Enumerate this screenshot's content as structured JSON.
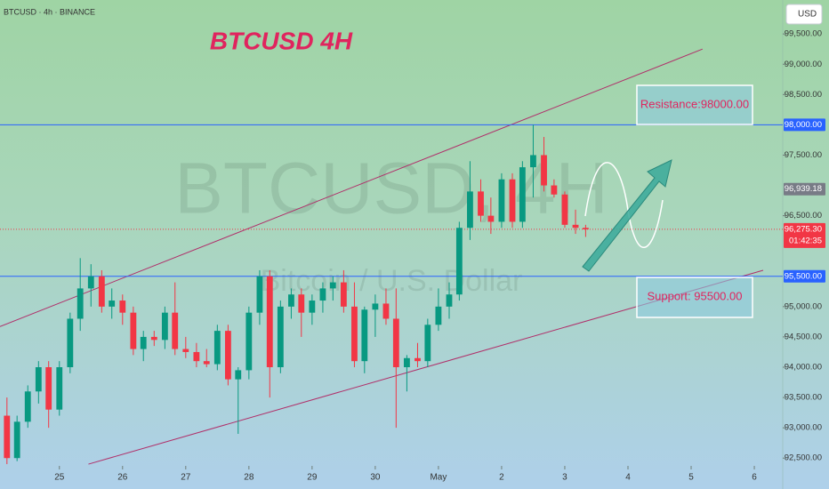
{
  "header": "BTCUSD · 4h · BINANCE",
  "currency": "USD",
  "chart_data": {
    "type": "candlestick",
    "title": "BTCUSD 4H",
    "watermark": "BTCUSD, 4H",
    "watermark_subtitle": "Bitcoin / U.S. Dollar",
    "up_color": "#089981",
    "down_color": "#f23645",
    "xlim": [
      24.06,
      36.45
    ],
    "xticks": [
      25,
      26,
      27,
      28,
      29,
      30,
      {
        "value": 31,
        "label": "May"
      },
      {
        "value": 32,
        "label": "2"
      },
      {
        "value": 33,
        "label": "3"
      },
      {
        "value": 34,
        "label": "4"
      },
      {
        "value": 35,
        "label": "5"
      },
      {
        "value": 36,
        "label": "6"
      }
    ],
    "ylim": [
      92430,
      100060
    ],
    "yticks": [
      {
        "value": 92500,
        "label": "92,500.00"
      },
      {
        "value": 93000,
        "label": "93,000.00"
      },
      {
        "value": 93500,
        "label": "93,500.00"
      },
      {
        "value": 94000,
        "label": "94,000.00"
      },
      {
        "value": 94500,
        "label": "94,500.00"
      },
      {
        "value": 95000,
        "label": "95,000.00"
      },
      {
        "value": 96500,
        "label": "96,500.00"
      },
      {
        "value": 97500,
        "label": "97,500.00"
      },
      {
        "value": 98500,
        "label": "98,500.00"
      },
      {
        "value": 99000,
        "label": "99,000.00"
      },
      {
        "value": 99500,
        "label": "99,500.00"
      }
    ],
    "x": [
      24.17,
      24.33,
      24.5,
      24.67,
      24.83,
      25,
      25.17,
      25.33,
      25.5,
      25.67,
      25.83,
      26,
      26.17,
      26.33,
      26.5,
      26.67,
      26.83,
      27,
      27.17,
      27.33,
      27.5,
      27.67,
      27.83,
      28,
      28.17,
      28.33,
      28.5,
      28.67,
      28.83,
      29,
      29.17,
      29.33,
      29.5,
      29.67,
      29.83,
      30,
      30.17,
      30.33,
      30.5,
      30.67,
      30.83,
      31,
      31.17,
      31.33,
      31.5,
      31.67,
      31.83,
      32,
      32.17,
      32.33,
      32.5,
      32.67,
      32.83,
      33,
      33.17,
      33.33
    ],
    "open": [
      93200,
      92500,
      93100,
      93600,
      94000,
      93300,
      94000,
      94800,
      95300,
      95500,
      95000,
      95100,
      94900,
      94300,
      94500,
      94450,
      94900,
      94300,
      94250,
      94100,
      94050,
      94600,
      93800,
      93950,
      94900,
      95500,
      94000,
      95000,
      95200,
      94900,
      95100,
      95300,
      95400,
      95000,
      94100,
      94950,
      95050,
      94800,
      94000,
      94150,
      94100,
      94700,
      95000,
      95200,
      96300,
      96900,
      96500,
      96400,
      97100,
      96400,
      97300,
      97500,
      97000,
      96850,
      96350,
      96300
    ],
    "high": [
      93500,
      93200,
      93700,
      94100,
      94100,
      94100,
      94900,
      95800,
      95700,
      95600,
      95300,
      95200,
      95000,
      94600,
      94600,
      95000,
      95400,
      94500,
      94400,
      94300,
      94700,
      94700,
      94000,
      95000,
      95600,
      95600,
      95100,
      95300,
      95300,
      95200,
      95400,
      95500,
      95600,
      95400,
      95000,
      95200,
      95300,
      95300,
      94200,
      94400,
      94800,
      95300,
      95400,
      96400,
      97400,
      97100,
      96800,
      97200,
      97200,
      97400,
      98000,
      97800,
      97100,
      96900,
      96600,
      96350
    ],
    "low": [
      92400,
      92450,
      93000,
      93400,
      93000,
      93200,
      93900,
      94600,
      95000,
      94900,
      94800,
      94700,
      94200,
      94100,
      94350,
      94300,
      94200,
      94150,
      94000,
      94000,
      93950,
      93700,
      92900,
      93800,
      94700,
      93500,
      93900,
      94800,
      94500,
      94700,
      94900,
      95100,
      94900,
      94000,
      93900,
      94500,
      94700,
      93000,
      93600,
      94000,
      94000,
      94600,
      94800,
      95100,
      96100,
      96400,
      96200,
      96300,
      96300,
      96300,
      96800,
      96900,
      96800,
      96300,
      96200,
      96150
    ],
    "close": [
      92500,
      93100,
      93600,
      94000,
      93300,
      94000,
      94800,
      95300,
      95500,
      95000,
      95100,
      94900,
      94300,
      94500,
      94450,
      94900,
      94300,
      94250,
      94100,
      94050,
      94600,
      93800,
      93950,
      94900,
      95500,
      94000,
      95000,
      95200,
      94900,
      95100,
      95300,
      95400,
      95000,
      94100,
      94950,
      95050,
      94800,
      94000,
      94150,
      94100,
      94700,
      95000,
      95200,
      96300,
      96900,
      96500,
      96400,
      97100,
      96400,
      97300,
      97500,
      97000,
      96850,
      96350,
      96300,
      96275.3
    ],
    "hlines": [
      {
        "value": 98000,
        "label": "98,000.00",
        "color": "#2962ff"
      },
      {
        "value": 95500,
        "label": "95,500.00",
        "color": "#2962ff"
      }
    ],
    "channels": [
      {
        "x": [
          24.06,
          35.18
        ],
        "y": [
          94670,
          99250
        ],
        "color": "#b0306a"
      },
      {
        "x": [
          25.46,
          36.14
        ],
        "y": [
          92400,
          95600
        ],
        "color": "#b0306a"
      }
    ],
    "price_markers": [
      {
        "value": 96939.18,
        "label": "96,939.18",
        "color": "#787b86"
      }
    ],
    "last_price": {
      "value": 96275.3,
      "label": "96,275.30",
      "countdown": "01:42:35",
      "color": "#f23645"
    },
    "annotations": [
      "Resistance:98000.00",
      "Support: 95500.00"
    ]
  }
}
